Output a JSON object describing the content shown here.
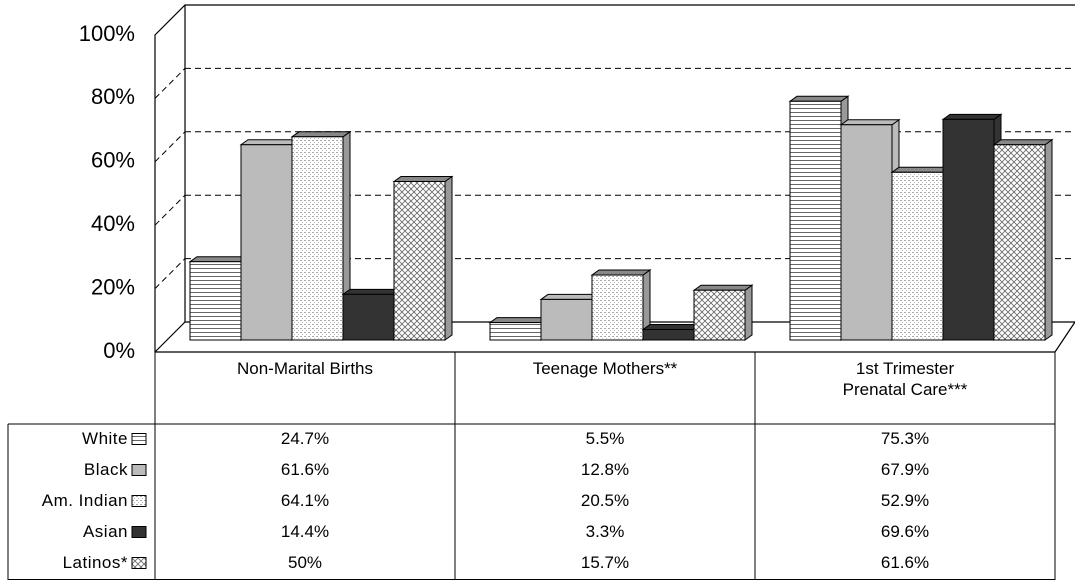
{
  "chart_data": {
    "type": "bar3d",
    "categories": [
      "Non-Marital Births",
      "Teenage Mothers**",
      "1st Trimester\nPrenatal Care***"
    ],
    "series": [
      {
        "name": "White",
        "color": "#ffffff",
        "pattern": "hlines",
        "values": [
          24.7,
          5.5,
          75.3
        ],
        "value_labels": [
          "24.7%",
          "5.5%",
          "75.3%"
        ]
      },
      {
        "name": "Black",
        "color": "#bbbbbb",
        "pattern": "solid",
        "values": [
          61.6,
          12.8,
          67.9
        ],
        "value_labels": [
          "61.6%",
          "12.8%",
          "67.9%"
        ]
      },
      {
        "name": "Am. Indian",
        "color": "#eeeeee",
        "pattern": "dots",
        "values": [
          64.1,
          20.5,
          52.9
        ],
        "value_labels": [
          "64.1%",
          "20.5%",
          "52.9%"
        ]
      },
      {
        "name": "Asian",
        "color": "#333333",
        "pattern": "solid",
        "values": [
          14.4,
          3.3,
          69.6
        ],
        "value_labels": [
          "14.4%",
          "3.3%",
          "69.6%"
        ]
      },
      {
        "name": "Latinos*",
        "color": "#ffffff",
        "pattern": "crosshatch",
        "values": [
          50,
          15.7,
          61.6
        ],
        "value_labels": [
          "50%",
          "15.7%",
          "61.6%"
        ]
      }
    ],
    "ylim": [
      0,
      100
    ],
    "yticks": [
      {
        "value": 0,
        "label": "0%"
      },
      {
        "value": 20,
        "label": "20%"
      },
      {
        "value": 40,
        "label": "40%"
      },
      {
        "value": 60,
        "label": "60%"
      },
      {
        "value": 80,
        "label": "80%"
      },
      {
        "value": 100,
        "label": "100%"
      }
    ],
    "grid": true,
    "data_table": true
  }
}
